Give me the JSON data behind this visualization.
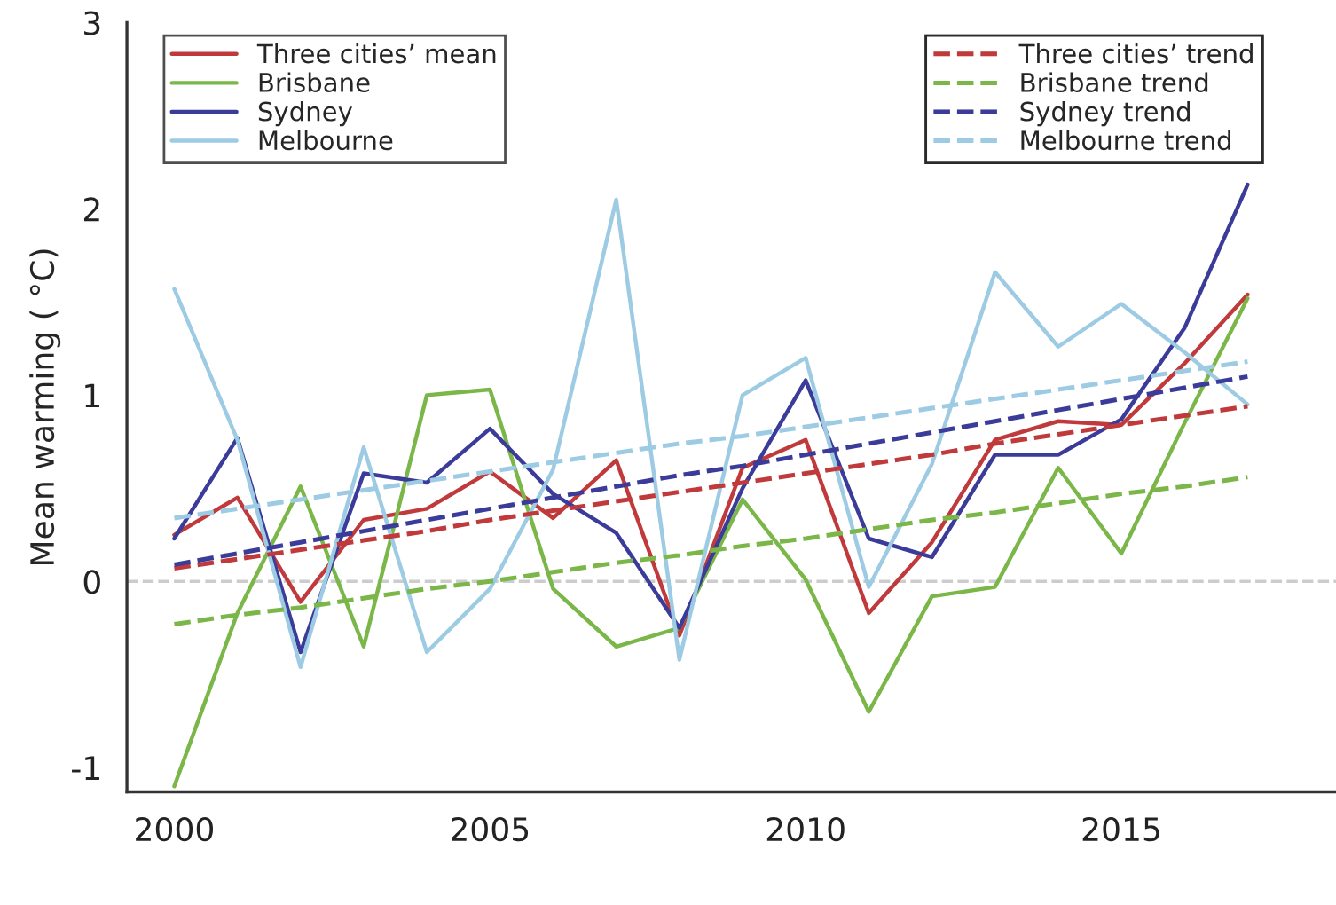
{
  "chart_data": {
    "type": "line",
    "ylabel": "Mean warming ( °C)",
    "x": [
      2000,
      2001,
      2002,
      2003,
      2004,
      2005,
      2006,
      2007,
      2008,
      2009,
      2010,
      2011,
      2012,
      2013,
      2014,
      2015,
      2016,
      2017
    ],
    "xlim": [
      1999.25,
      2018.4
    ],
    "xticks": [
      2000,
      2005,
      2010,
      2015
    ],
    "ylim": [
      -1.13,
      3
    ],
    "yticks": [
      -1,
      0,
      1,
      2,
      3
    ],
    "grid": false,
    "legend": "top",
    "marker": "none",
    "ref_lines": [
      {
        "axis": "y",
        "value": 0,
        "color": "#cccccc",
        "line_style": "dashed"
      }
    ],
    "series": [
      {
        "name": "Three cities’ mean",
        "color": "#c0393b",
        "line_style": "solid",
        "values": [
          0.25,
          0.45,
          -0.11,
          0.33,
          0.39,
          0.59,
          0.34,
          0.65,
          -0.29,
          0.61,
          0.76,
          -0.17,
          0.21,
          0.76,
          0.86,
          0.84,
          1.17,
          1.54
        ]
      },
      {
        "name": "Brisbane",
        "color": "#7ab648",
        "line_style": "solid",
        "values": [
          -1.1,
          -0.17,
          0.51,
          -0.35,
          1.0,
          1.03,
          -0.04,
          -0.35,
          -0.25,
          0.44,
          0.01,
          -0.7,
          -0.08,
          -0.03,
          0.61,
          0.15,
          0.85,
          1.52
        ]
      },
      {
        "name": "Sydney",
        "color": "#3b3b9a",
        "line_style": "solid",
        "values": [
          0.23,
          0.77,
          -0.38,
          0.58,
          0.53,
          0.82,
          0.47,
          0.26,
          -0.25,
          0.5,
          1.08,
          0.23,
          0.13,
          0.68,
          0.68,
          0.87,
          1.36,
          2.13
        ]
      },
      {
        "name": "Melbourne",
        "color": "#9ccbe3",
        "line_style": "solid",
        "values": [
          1.57,
          0.76,
          -0.46,
          0.72,
          -0.38,
          -0.04,
          0.6,
          2.05,
          -0.42,
          1.0,
          1.2,
          -0.03,
          0.63,
          1.66,
          1.26,
          1.49,
          1.23,
          0.95
        ]
      },
      {
        "name": "Three cities’ trend",
        "color": "#c0393b",
        "line_style": "dashed",
        "values": [
          0.07,
          0.12,
          0.17,
          0.22,
          0.27,
          0.33,
          0.38,
          0.43,
          0.48,
          0.53,
          0.58,
          0.63,
          0.68,
          0.74,
          0.79,
          0.84,
          0.89,
          0.94
        ]
      },
      {
        "name": "Brisbane trend",
        "color": "#7ab648",
        "line_style": "dashed",
        "values": [
          -0.23,
          -0.18,
          -0.14,
          -0.09,
          -0.04,
          0.0,
          0.05,
          0.1,
          0.14,
          0.19,
          0.23,
          0.28,
          0.33,
          0.37,
          0.42,
          0.47,
          0.51,
          0.56
        ]
      },
      {
        "name": "Sydney trend",
        "color": "#3b3b9a",
        "line_style": "dashed",
        "values": [
          0.09,
          0.15,
          0.21,
          0.27,
          0.33,
          0.39,
          0.45,
          0.51,
          0.57,
          0.62,
          0.68,
          0.74,
          0.8,
          0.86,
          0.92,
          0.98,
          1.04,
          1.1
        ]
      },
      {
        "name": "Melbourne trend",
        "color": "#9ccbe3",
        "line_style": "dashed",
        "values": [
          0.34,
          0.39,
          0.44,
          0.49,
          0.54,
          0.59,
          0.64,
          0.69,
          0.74,
          0.78,
          0.83,
          0.88,
          0.93,
          0.98,
          1.03,
          1.08,
          1.13,
          1.18
        ]
      }
    ]
  }
}
